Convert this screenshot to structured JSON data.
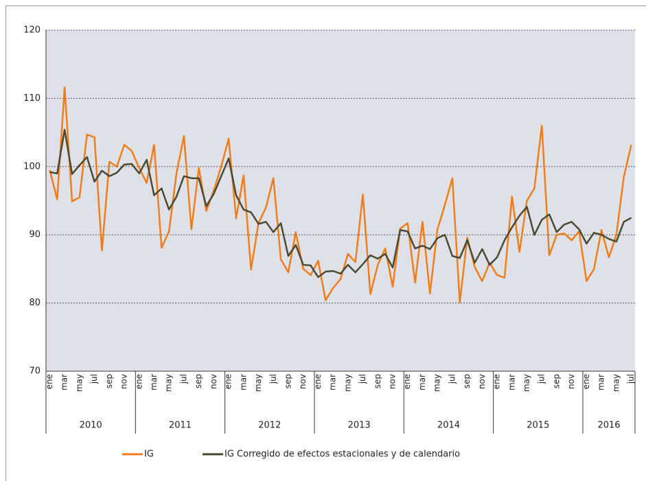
{
  "chart_data": {
    "type": "line",
    "categories": [
      "ene",
      null,
      "mar",
      null,
      "may",
      null,
      "jul",
      null,
      "sep",
      null,
      "nov",
      null,
      "ene",
      null,
      "mar",
      null,
      "may",
      null,
      "jul",
      null,
      "sep",
      null,
      "nov",
      null,
      "ene",
      null,
      "mar",
      null,
      "may",
      null,
      "jul",
      null,
      "sep",
      null,
      "nov",
      null,
      "ene",
      null,
      "mar",
      null,
      "may",
      null,
      "jul",
      null,
      "sep",
      null,
      "nov",
      null,
      "ene",
      null,
      "mar",
      null,
      "may",
      null,
      "jul",
      null,
      "sep",
      null,
      "nov",
      null,
      "ene",
      null,
      "mar",
      null,
      "may",
      null,
      "jul",
      null,
      "sep",
      null,
      "nov",
      null,
      "ene",
      null,
      "mar",
      null,
      "may",
      null,
      "jul"
    ],
    "x_groups": [
      "2010",
      "2011",
      "2012",
      "2013",
      "2014",
      "2015",
      "2016"
    ],
    "series": [
      {
        "name": "IG",
        "color": "#f07d1a",
        "values": [
          99.5,
          95.2,
          111.6,
          94.9,
          95.5,
          104.7,
          104.3,
          87.7,
          100.7,
          100.0,
          103.2,
          102.3,
          99.8,
          97.6,
          103.2,
          88.1,
          90.5,
          99.0,
          104.5,
          90.8,
          99.8,
          93.5,
          96.5,
          100.0,
          104.1,
          92.4,
          98.7,
          84.9,
          91.7,
          94.0,
          98.3,
          86.4,
          84.5,
          90.4,
          85.0,
          84.1,
          86.2,
          80.4,
          82.2,
          83.5,
          87.2,
          86.0,
          95.9,
          81.3,
          85.6,
          88.0,
          82.4,
          90.9,
          91.7,
          83.0,
          91.9,
          81.4,
          90.8,
          94.4,
          98.3,
          80.1,
          89.6,
          85.3,
          83.2,
          85.9,
          84.1,
          83.7,
          95.6,
          87.5,
          95.0,
          96.8,
          106.0,
          87.0,
          90.0,
          90.2,
          89.2,
          90.5,
          83.2,
          85.0,
          90.7,
          86.7,
          90.0,
          98.5,
          103.2
        ]
      },
      {
        "name": "IG Corregido de efectos estacionales y de calendario",
        "color": "#4a4a32",
        "values": [
          99.2,
          99.0,
          105.4,
          98.9,
          100.2,
          101.4,
          97.8,
          99.4,
          98.6,
          99.1,
          100.3,
          100.4,
          99.0,
          101.0,
          95.8,
          96.8,
          93.7,
          95.6,
          98.6,
          98.3,
          98.3,
          94.2,
          96.0,
          98.6,
          101.2,
          95.8,
          93.7,
          93.3,
          91.6,
          91.9,
          90.4,
          91.7,
          86.9,
          88.5,
          85.6,
          85.5,
          83.8,
          84.6,
          84.7,
          84.3,
          85.6,
          84.5,
          85.7,
          87.0,
          86.5,
          87.2,
          85.2,
          90.7,
          90.5,
          88.0,
          88.4,
          87.9,
          89.5,
          90.0,
          86.9,
          86.6,
          89.2,
          85.9,
          87.9,
          85.6,
          86.7,
          89.2,
          91.1,
          92.8,
          94.1,
          90.0,
          92.2,
          93.0,
          90.4,
          91.5,
          91.9,
          90.8,
          88.7,
          90.3,
          90.0,
          89.4,
          89.0,
          91.9,
          92.5
        ]
      }
    ],
    "ylim": [
      70,
      120
    ],
    "yticks": [
      70,
      80,
      90,
      100,
      110,
      120
    ],
    "grid": true
  }
}
